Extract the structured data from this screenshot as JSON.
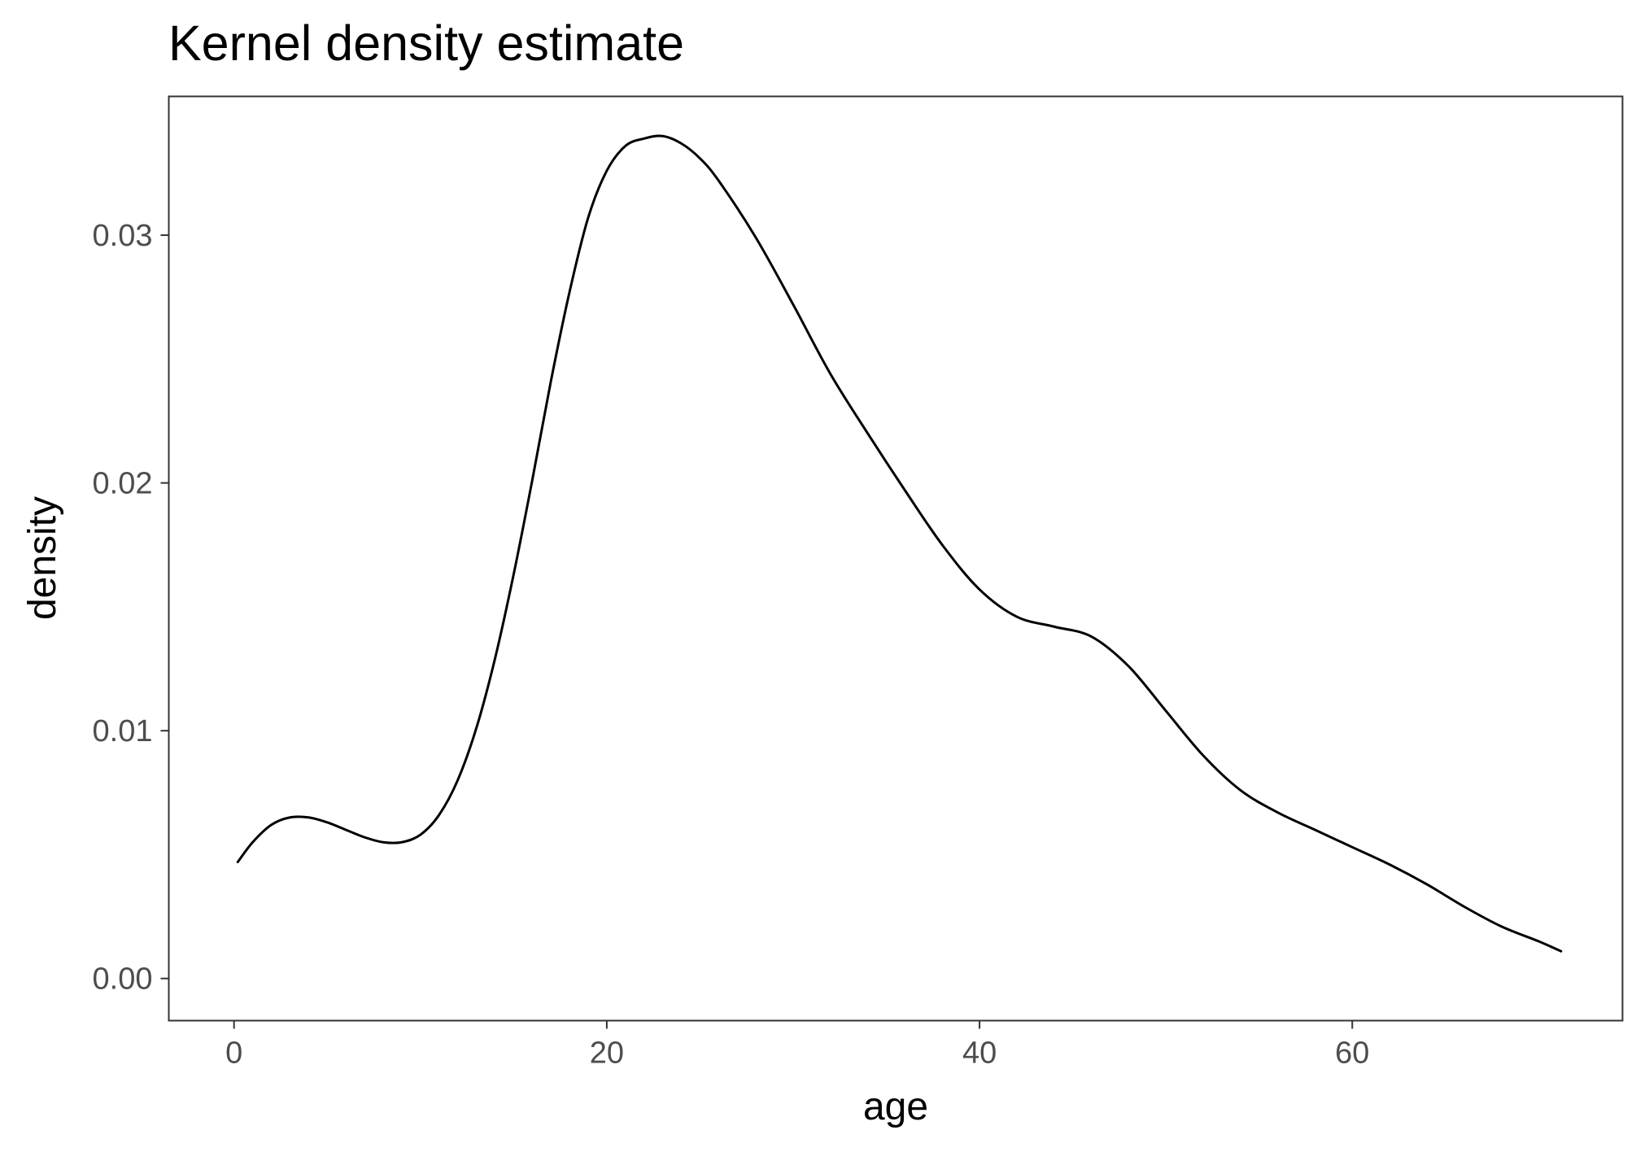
{
  "chart_data": {
    "type": "line",
    "title": "Kernel density estimate",
    "xlabel": "age",
    "ylabel": "density",
    "xlim": [
      -3.5,
      74.5
    ],
    "ylim": [
      -0.0017,
      0.0356
    ],
    "x_ticks": [
      0,
      20,
      40,
      60
    ],
    "y_ticks": [
      0.0,
      0.01,
      0.02,
      0.03
    ],
    "x_tick_labels": [
      "0",
      "20",
      "40",
      "60"
    ],
    "y_tick_labels": [
      "0.00",
      "0.01",
      "0.02",
      "0.03"
    ],
    "grid": false,
    "line_color": "#000000",
    "axis_text_color": "#4d4d4d",
    "series": [
      {
        "x": [
          0.2,
          1,
          2,
          3,
          4,
          5,
          6,
          7,
          8,
          9,
          10,
          11,
          12,
          13,
          14,
          15,
          16,
          17,
          18,
          19,
          20,
          21,
          22,
          23,
          24,
          25,
          26,
          28,
          30,
          32,
          34,
          36,
          38,
          40,
          42,
          44,
          46,
          48,
          50,
          52,
          54,
          56,
          58,
          60,
          62,
          64,
          66,
          68,
          70,
          71.2
        ],
        "y": [
          0.0047,
          0.0055,
          0.0062,
          0.0065,
          0.0065,
          0.0063,
          0.006,
          0.0057,
          0.0055,
          0.0055,
          0.0058,
          0.0066,
          0.008,
          0.0101,
          0.0129,
          0.0163,
          0.0201,
          0.0241,
          0.0277,
          0.0307,
          0.0326,
          0.0336,
          0.0339,
          0.034,
          0.0337,
          0.0331,
          0.0322,
          0.0299,
          0.0272,
          0.0244,
          0.022,
          0.0197,
          0.0175,
          0.0157,
          0.0146,
          0.0142,
          0.0138,
          0.0126,
          0.0108,
          0.009,
          0.0076,
          0.0067,
          0.006,
          0.0053,
          0.0046,
          0.0038,
          0.0029,
          0.0021,
          0.0015,
          0.0011
        ]
      }
    ]
  }
}
